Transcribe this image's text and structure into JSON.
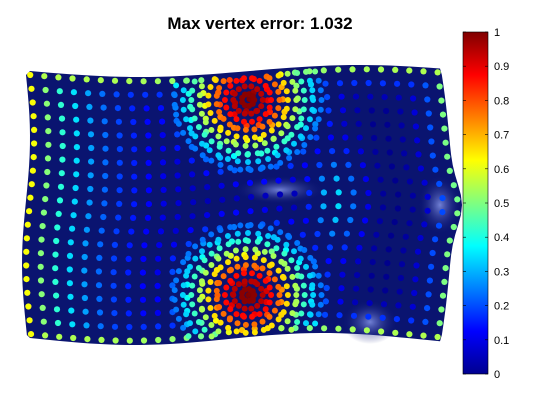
{
  "title": "Max vertex error: 1.032",
  "colors": {
    "background": "#ffffff",
    "surface": "#0a1470",
    "colormap": "jet"
  },
  "chart_data": {
    "type": "scatter",
    "title": "Max vertex error: 1.032",
    "xlabel": "",
    "ylabel": "",
    "grid": false,
    "legend": "none",
    "axes_visible": false,
    "colorbar": {
      "position": "right",
      "range": [
        0,
        1
      ],
      "ticks": [
        0,
        0.1,
        0.2,
        0.3,
        0.4,
        0.5,
        0.6,
        0.7,
        0.8,
        0.9,
        1
      ],
      "tick_labels": [
        "0",
        "0.1",
        "0.2",
        "0.3",
        "0.4",
        "0.5",
        "0.6",
        "0.7",
        "0.8",
        "0.9",
        "1"
      ],
      "colormap": "jet"
    },
    "max_vertex_error": 1.032,
    "hotspots": [
      {
        "name": "upper-peak",
        "value": 1.0
      },
      {
        "name": "lower-peak",
        "value": 1.0
      }
    ]
  }
}
